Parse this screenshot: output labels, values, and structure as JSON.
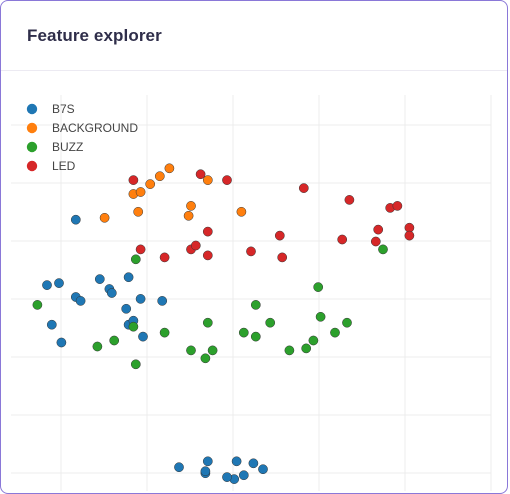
{
  "header": {
    "title": "Feature explorer"
  },
  "chart_data": {
    "type": "scatter",
    "title": "",
    "xlabel": "",
    "ylabel": "",
    "grid": true,
    "legend": {
      "placement": "top-left"
    },
    "xlim": [
      0,
      100
    ],
    "ylim": [
      0,
      100
    ],
    "series": [
      {
        "name": "B7S",
        "color": "#1f77b4",
        "points": [
          [
            13.5,
            68.5
          ],
          [
            7.5,
            52
          ],
          [
            10,
            52.5
          ],
          [
            13.5,
            49
          ],
          [
            14.5,
            48
          ],
          [
            18.5,
            53.5
          ],
          [
            20.5,
            51
          ],
          [
            21,
            50
          ],
          [
            24.5,
            54
          ],
          [
            27,
            48.5
          ],
          [
            24.5,
            42
          ],
          [
            25.5,
            43
          ],
          [
            27.5,
            39
          ],
          [
            24,
            46
          ],
          [
            10.5,
            37.5
          ],
          [
            8.5,
            42
          ],
          [
            31.5,
            48
          ],
          [
            35,
            6
          ],
          [
            41,
            7.5
          ],
          [
            40.5,
            4.5
          ],
          [
            40.5,
            5
          ],
          [
            47,
            7.5
          ],
          [
            50.5,
            7
          ],
          [
            48.5,
            4
          ],
          [
            46.5,
            3
          ],
          [
            45,
            3.5
          ],
          [
            52.5,
            5.5
          ]
        ]
      },
      {
        "name": "BACKGROUND",
        "color": "#ff7f0e",
        "points": [
          [
            33,
            81.5
          ],
          [
            31,
            79.5
          ],
          [
            29,
            77.5
          ],
          [
            25.5,
            75
          ],
          [
            26.5,
            70.5
          ],
          [
            27,
            75.5
          ],
          [
            19.5,
            69
          ],
          [
            37.5,
            72
          ],
          [
            37,
            69.5
          ],
          [
            41,
            78.5
          ],
          [
            48,
            70.5
          ]
        ]
      },
      {
        "name": "BUZZ",
        "color": "#2ca02c",
        "points": [
          [
            26,
            58.5
          ],
          [
            5.5,
            47
          ],
          [
            18,
            36.5
          ],
          [
            21.5,
            38
          ],
          [
            25.5,
            41.5
          ],
          [
            26,
            32
          ],
          [
            32,
            40
          ],
          [
            41,
            42.5
          ],
          [
            42,
            35.5
          ],
          [
            40.5,
            33.5
          ],
          [
            37.5,
            35.5
          ],
          [
            48.5,
            40
          ],
          [
            51,
            39
          ],
          [
            51,
            47
          ],
          [
            54,
            42.5
          ],
          [
            58,
            35.5
          ],
          [
            61.5,
            36
          ],
          [
            63,
            38
          ],
          [
            64,
            51.5
          ],
          [
            64.5,
            44
          ],
          [
            67.5,
            40
          ],
          [
            70,
            42.5
          ],
          [
            77.5,
            61
          ]
        ]
      },
      {
        "name": "LED",
        "color": "#d62728",
        "points": [
          [
            25.5,
            78.5
          ],
          [
            39.5,
            80
          ],
          [
            45,
            78.5
          ],
          [
            41,
            65.5
          ],
          [
            37.5,
            61
          ],
          [
            38.5,
            62
          ],
          [
            41,
            59.5
          ],
          [
            27,
            61
          ],
          [
            32,
            59
          ],
          [
            50,
            60.5
          ],
          [
            56,
            64.5
          ],
          [
            56.5,
            59
          ],
          [
            61,
            76.5
          ],
          [
            70.5,
            73.5
          ],
          [
            69,
            63.5
          ],
          [
            79,
            71.5
          ],
          [
            80.5,
            72
          ],
          [
            83,
            66.5
          ],
          [
            83,
            64.5
          ],
          [
            76.5,
            66
          ],
          [
            76,
            63
          ]
        ]
      }
    ]
  }
}
